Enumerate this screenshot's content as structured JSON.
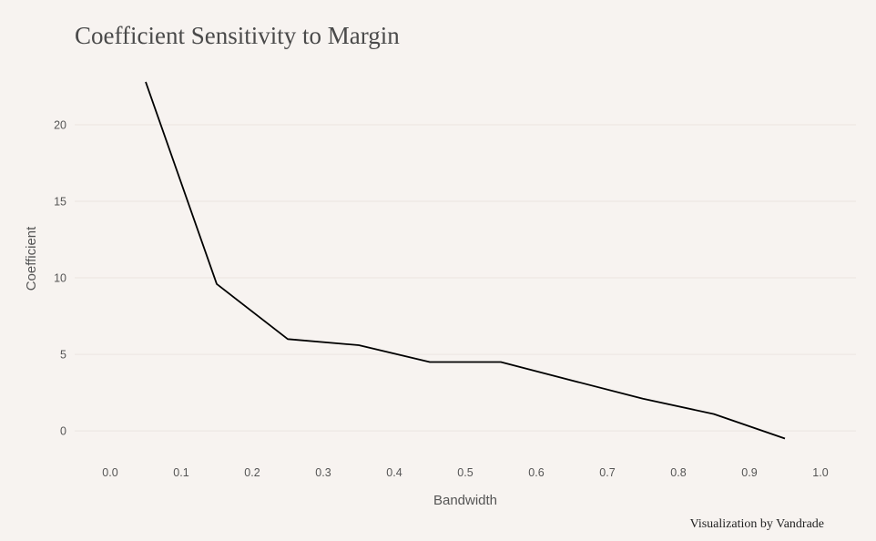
{
  "chart_data": {
    "type": "line",
    "title": "Coefficient Sensitivity to Margin",
    "xlabel": "Bandwidth",
    "ylabel": "Coefficient",
    "caption": "Visualization by Vandrade",
    "xlim": [
      -0.05,
      1.05
    ],
    "ylim": [
      -1.6,
      24.7
    ],
    "xticks": [
      "0.0",
      "0.1",
      "0.2",
      "0.3",
      "0.4",
      "0.5",
      "0.6",
      "0.7",
      "0.8",
      "0.9",
      "1.0"
    ],
    "yticks": [
      "0",
      "5",
      "10",
      "15",
      "20"
    ],
    "grid": true,
    "legend": "none",
    "series": [
      {
        "color": "#000000",
        "x": [
          0.05,
          0.15,
          0.25,
          0.35,
          0.45,
          0.55,
          0.65,
          0.75,
          0.85,
          0.95
        ],
        "y": [
          22.8,
          9.6,
          6.0,
          5.6,
          4.5,
          4.5,
          3.3,
          2.1,
          1.1,
          -0.5
        ]
      }
    ]
  }
}
